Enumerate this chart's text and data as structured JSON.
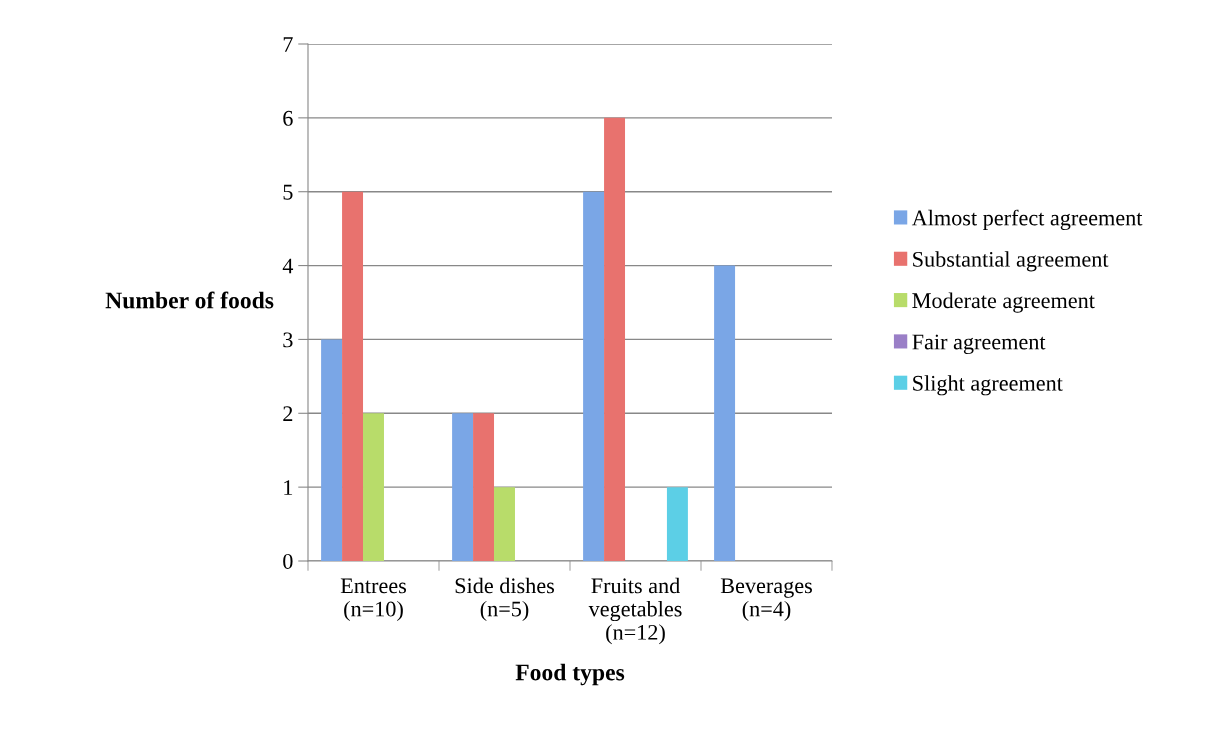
{
  "chart_data": {
    "type": "bar",
    "xlabel": "Food types",
    "ylabel": "Number of foods",
    "categories": [
      "Entrees\n(n=10)",
      "Side dishes\n(n=5)",
      "Fruits and\nvegetables\n(n=12)",
      "Beverages\n(n=4)"
    ],
    "series": [
      {
        "name": "Almost perfect agreement",
        "color": "#7aa6e6",
        "values": [
          3,
          2,
          5,
          4
        ]
      },
      {
        "name": "Substantial agreement",
        "color": "#e8726e",
        "values": [
          5,
          2,
          6,
          0
        ]
      },
      {
        "name": "Moderate agreement",
        "color": "#b8dc6a",
        "values": [
          2,
          1,
          0,
          0
        ]
      },
      {
        "name": "Fair agreement",
        "color": "#9a7fc7",
        "values": [
          0,
          0,
          0,
          0
        ]
      },
      {
        "name": "Slight agreement",
        "color": "#5ccfe6",
        "values": [
          0,
          0,
          1,
          0
        ]
      }
    ],
    "ylim": [
      0,
      7
    ],
    "yticks": [
      0,
      1,
      2,
      3,
      4,
      5,
      6,
      7
    ],
    "grid": "y",
    "legend": "right"
  }
}
